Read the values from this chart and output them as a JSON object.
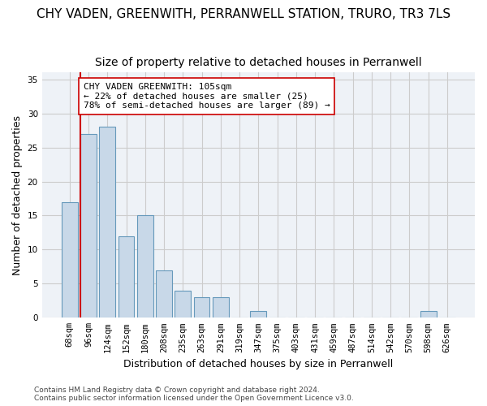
{
  "title": "CHY VADEN, GREENWITH, PERRANWELL STATION, TRURO, TR3 7LS",
  "subtitle": "Size of property relative to detached houses in Perranwell",
  "xlabel": "Distribution of detached houses by size in Perranwell",
  "ylabel": "Number of detached properties",
  "bar_labels": [
    "68sqm",
    "96sqm",
    "124sqm",
    "152sqm",
    "180sqm",
    "208sqm",
    "235sqm",
    "263sqm",
    "291sqm",
    "319sqm",
    "347sqm",
    "375sqm",
    "403sqm",
    "431sqm",
    "459sqm",
    "487sqm",
    "514sqm",
    "542sqm",
    "570sqm",
    "598sqm",
    "626sqm"
  ],
  "bar_values": [
    17,
    27,
    28,
    12,
    15,
    7,
    4,
    3,
    3,
    0,
    1,
    0,
    0,
    0,
    0,
    0,
    0,
    0,
    0,
    1,
    0
  ],
  "bar_color": "#c8d8e8",
  "bar_edge_color": "#6699bb",
  "vline_color": "#cc0000",
  "annotation_text": "CHY VADEN GREENWITH: 105sqm\n← 22% of detached houses are smaller (25)\n78% of semi-detached houses are larger (89) →",
  "annotation_box_color": "#ffffff",
  "annotation_box_edge": "#cc0000",
  "ylim": [
    0,
    36
  ],
  "yticks": [
    0,
    5,
    10,
    15,
    20,
    25,
    30,
    35
  ],
  "grid_color": "#cccccc",
  "bg_color": "#eef2f7",
  "footer_line1": "Contains HM Land Registry data © Crown copyright and database right 2024.",
  "footer_line2": "Contains public sector information licensed under the Open Government Licence v3.0.",
  "title_fontsize": 11,
  "subtitle_fontsize": 10,
  "xlabel_fontsize": 9,
  "ylabel_fontsize": 9,
  "tick_fontsize": 7.5,
  "annotation_fontsize": 8
}
